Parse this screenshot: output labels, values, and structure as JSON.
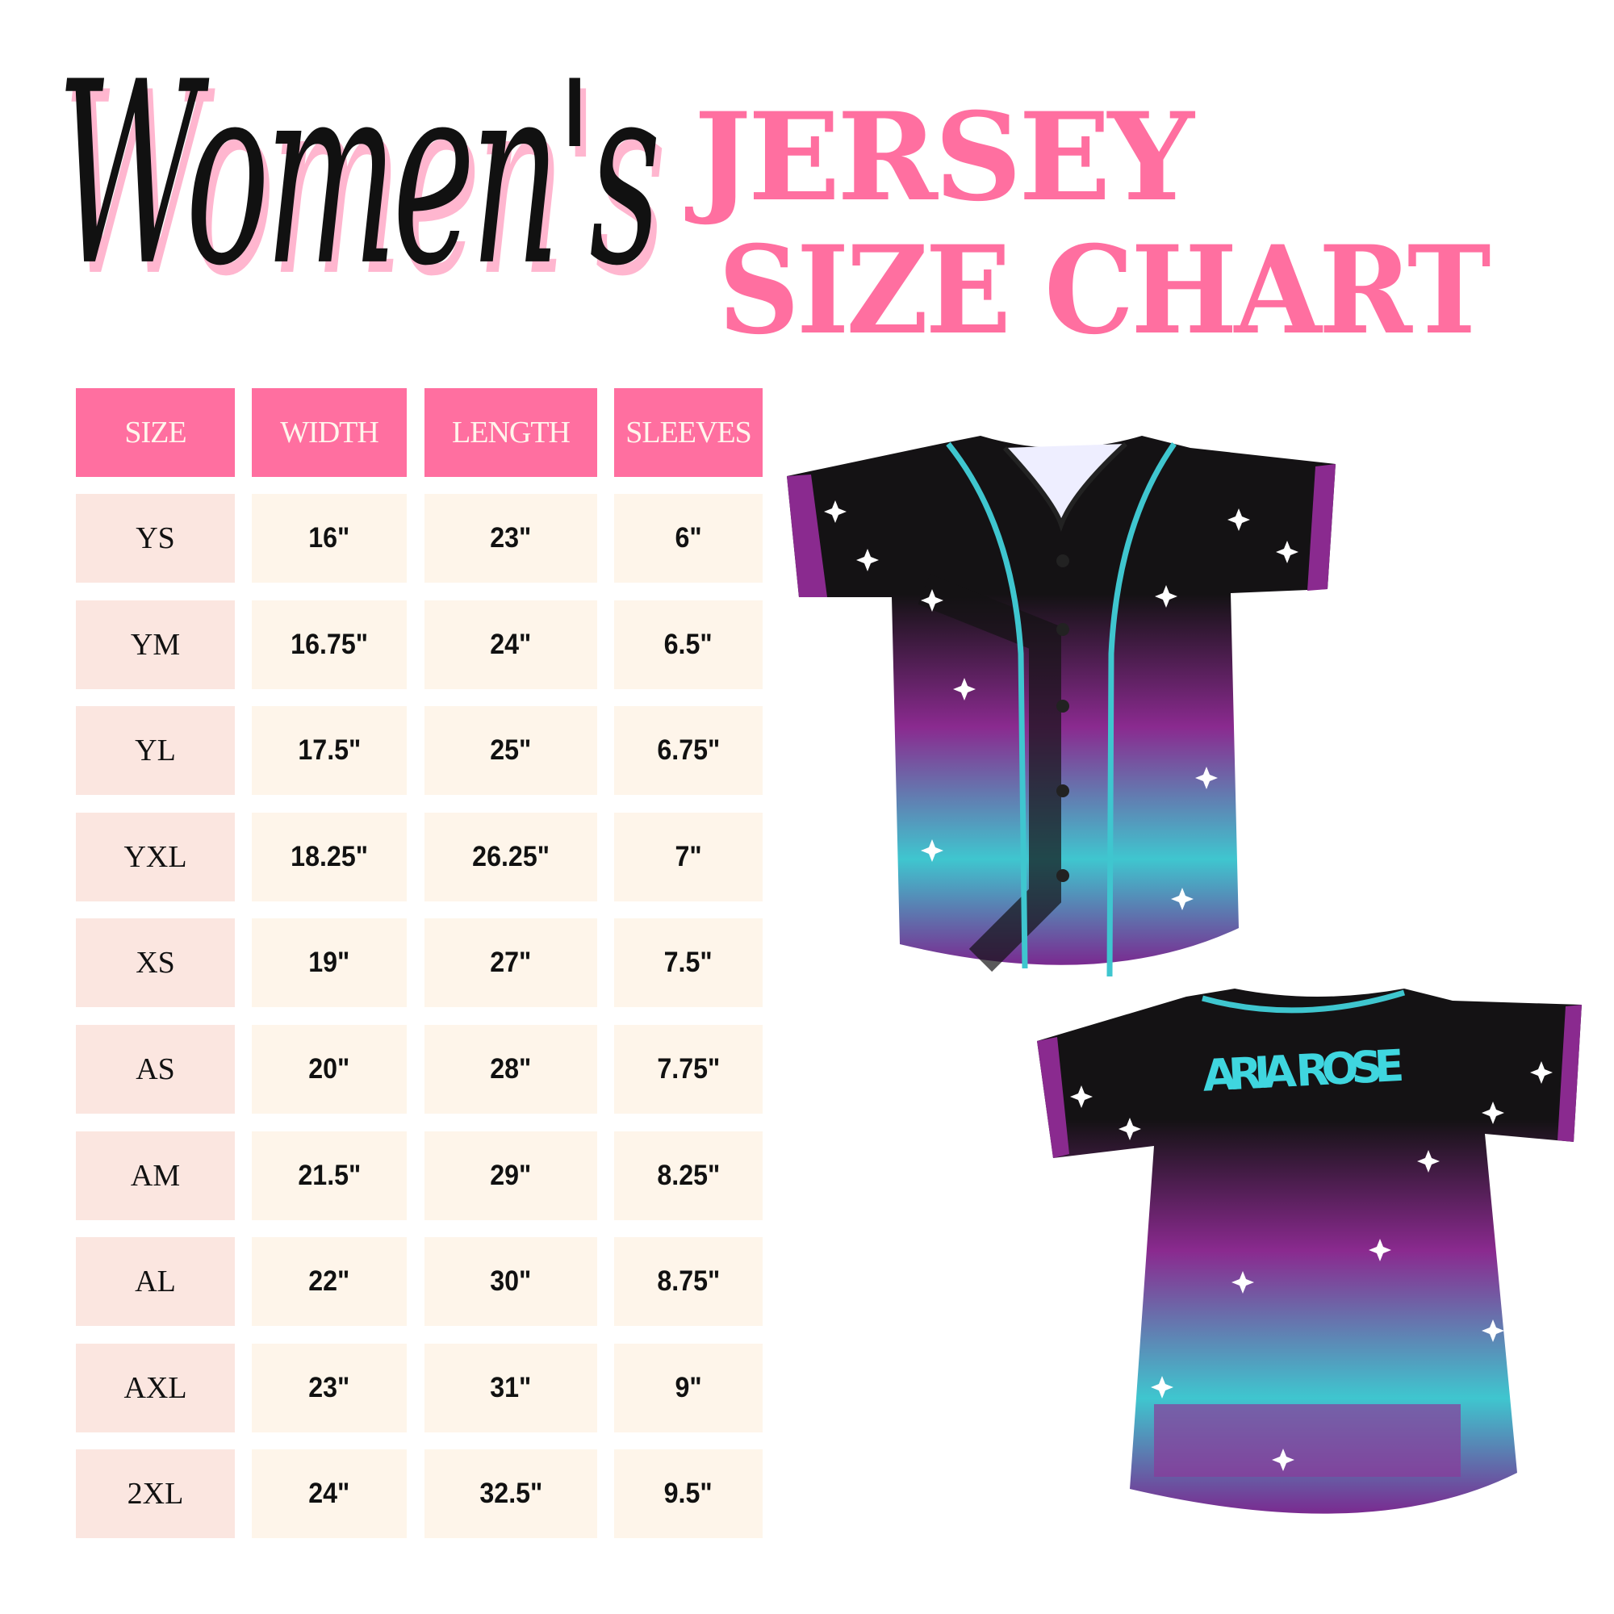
{
  "header": {
    "script_title": "Women's",
    "title_line1": "JERSEY",
    "title_line2": "SIZE CHART"
  },
  "table": {
    "columns": [
      "SIZE",
      "WIDTH",
      "LENGTH",
      "SLEEVES"
    ],
    "rows": [
      [
        "YS",
        "16\"",
        "23\"",
        "6\""
      ],
      [
        "YM",
        "16.75\"",
        "24\"",
        "6.5\""
      ],
      [
        "YL",
        "17.5\"",
        "25\"",
        "6.75\""
      ],
      [
        "YXL",
        "18.25\"",
        "26.25\"",
        "7\""
      ],
      [
        "XS",
        "19\"",
        "27\"",
        "7.5\""
      ],
      [
        "AS",
        "20\"",
        "28\"",
        "7.75\""
      ],
      [
        "AM",
        "21.5\"",
        "29\"",
        "8.25\""
      ],
      [
        "AL",
        "22\"",
        "30\"",
        "8.75\""
      ],
      [
        "AXL",
        "23\"",
        "31\"",
        "9\""
      ],
      [
        "2XL",
        "24\"",
        "32.5\"",
        "9.5\""
      ]
    ]
  },
  "jersey_back": {
    "name_print": "ARIA ROSE"
  },
  "colors": {
    "pink": "#ff6fa0",
    "size_cell": "#fbe6e0",
    "value_cell": "#fef5ea",
    "jersey_black": "#141214",
    "jersey_purple": "#8a2a8f",
    "jersey_cyan": "#3fc6cf"
  }
}
